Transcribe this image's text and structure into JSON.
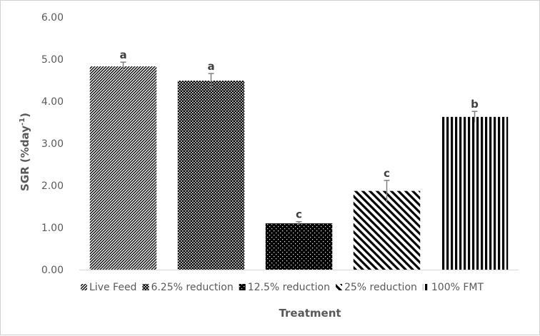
{
  "chart_data": {
    "type": "bar",
    "categories": [
      "Live Feed",
      "6.25% reduction",
      "12.5% reduction",
      "25% reduction",
      "100% FMT"
    ],
    "values": [
      4.83,
      4.49,
      1.1,
      1.87,
      3.63
    ],
    "errors": [
      0.1,
      0.17,
      0.04,
      0.25,
      0.13
    ],
    "significance_letters": [
      "a",
      "a",
      "c",
      "c",
      "b"
    ],
    "patterns": [
      "dense-diagonal-hatch",
      "dotted-grid",
      "black-with-white-dots",
      "wide-diagonal-stripes",
      "vertical-stripes"
    ],
    "ylabel_main": "SGR (%day",
    "ylabel_sup": "-1",
    "ylabel_close": ")",
    "xlabel": "Treatment",
    "ylim": [
      0,
      6
    ],
    "yticks": [
      "0.00",
      "1.00",
      "2.00",
      "3.00",
      "4.00",
      "5.00",
      "6.00"
    ],
    "legend_position": "bottom",
    "grid": false,
    "bar_color": "#000000",
    "error_bar_color": "#7f7f7f"
  }
}
